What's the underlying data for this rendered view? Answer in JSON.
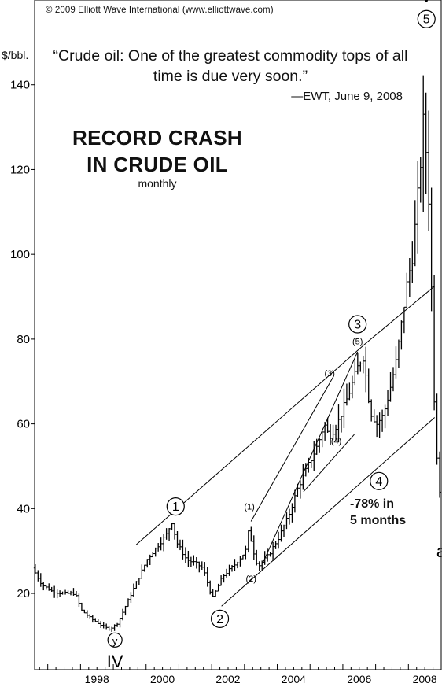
{
  "copyright": "© 2009 Elliott Wave International (www.elliottwave.com)",
  "quote": "“Crude oil: One of the greatest commodity tops of all time is due very soon.”",
  "quote_source": "—EWT, June 9, 2008",
  "title_line1": "RECORD CRASH",
  "title_line2": "IN CRUDE OIL",
  "subtitle": "monthly",
  "crash_line1": "-78% in",
  "crash_line2": "5 months",
  "chart_data": {
    "type": "bar",
    "bar_kind": "OHLC monthly price bars",
    "ylabel": "$/bbl.",
    "xlim": [
      1996.6,
      2009.0
    ],
    "ylim": [
      2,
      160
    ],
    "y_ticks": [
      20,
      40,
      60,
      80,
      100,
      120,
      140
    ],
    "x_ticks": [
      {
        "value": 1998.5,
        "label": "1998"
      },
      {
        "value": 2000.5,
        "label": "2000"
      },
      {
        "value": 2002.5,
        "label": "2002"
      },
      {
        "value": 2004.5,
        "label": "2004"
      },
      {
        "value": 2006.5,
        "label": "2006"
      },
      {
        "value": 2008.5,
        "label": "2008"
      }
    ],
    "anchors": [
      [
        1996.6,
        26
      ],
      [
        1996.9,
        22
      ],
      [
        1997.2,
        20.5
      ],
      [
        1997.5,
        20
      ],
      [
        1997.9,
        20
      ],
      [
        1998.1,
        16
      ],
      [
        1998.4,
        14
      ],
      [
        1998.7,
        12.5
      ],
      [
        1998.95,
        11.5
      ],
      [
        1999.2,
        13
      ],
      [
        1999.5,
        18
      ],
      [
        1999.8,
        23
      ],
      [
        2000.1,
        28
      ],
      [
        2000.4,
        31
      ],
      [
        2000.7,
        34
      ],
      [
        2000.85,
        37
      ],
      [
        2001.0,
        32
      ],
      [
        2001.3,
        28
      ],
      [
        2001.6,
        27
      ],
      [
        2001.8,
        26
      ],
      [
        2002.0,
        21
      ],
      [
        2002.1,
        19
      ],
      [
        2002.4,
        24
      ],
      [
        2002.8,
        27
      ],
      [
        2003.1,
        30
      ],
      [
        2003.2,
        35
      ],
      [
        2003.4,
        28
      ],
      [
        2003.5,
        26.5
      ],
      [
        2003.8,
        29
      ],
      [
        2004.1,
        33
      ],
      [
        2004.4,
        38
      ],
      [
        2004.7,
        45
      ],
      [
        2005.0,
        50
      ],
      [
        2005.3,
        55
      ],
      [
        2005.5,
        60
      ],
      [
        2005.65,
        57
      ],
      [
        2005.9,
        60
      ],
      [
        2006.2,
        66
      ],
      [
        2006.55,
        74
      ],
      [
        2006.7,
        76
      ],
      [
        2006.9,
        63
      ],
      [
        2007.1,
        60
      ],
      [
        2007.3,
        62
      ],
      [
        2007.5,
        68
      ],
      [
        2007.7,
        75
      ],
      [
        2007.9,
        86
      ],
      [
        2008.0,
        92
      ],
      [
        2008.2,
        100
      ],
      [
        2008.4,
        118
      ],
      [
        2008.5,
        128
      ],
      [
        2008.55,
        134
      ],
      [
        2008.6,
        125
      ],
      [
        2008.7,
        112
      ],
      [
        2008.75,
        100
      ],
      [
        2008.8,
        80
      ],
      [
        2008.85,
        67
      ],
      [
        2008.92,
        57
      ],
      [
        2008.97,
        45
      ]
    ],
    "annotations": {
      "wave_labels": [
        {
          "x": 2000.9,
          "y": 40.5,
          "label": "1",
          "circled": true
        },
        {
          "x": 2002.25,
          "y": 14.0,
          "label": "2",
          "circled": true
        },
        {
          "x": 2006.45,
          "y": 83.5,
          "label": "3",
          "circled": true
        },
        {
          "x": 2007.1,
          "y": 46.5,
          "label": "4",
          "circled": true
        },
        {
          "x": 2008.55,
          "y": 155.5,
          "label": "5",
          "circled": true
        },
        {
          "x": 1999.05,
          "y": 9.0,
          "label": "y",
          "circled": true
        },
        {
          "x": 1999.05,
          "y": 4.0,
          "label": "IV",
          "circled": false
        },
        {
          "x": 2008.55,
          "y": 161.0,
          "label": "V",
          "circled": false
        },
        {
          "x": 2009.0,
          "y": 30.0,
          "label": "a",
          "circled": false
        },
        {
          "x": 2003.15,
          "y": 40.5,
          "label": "(1)",
          "circled": false
        },
        {
          "x": 2003.2,
          "y": 23.5,
          "label": "(2)",
          "circled": false
        },
        {
          "x": 2005.6,
          "y": 72.0,
          "label": "(3)",
          "circled": false
        },
        {
          "x": 2005.8,
          "y": 56.0,
          "label": "(4)",
          "circled": false
        },
        {
          "x": 2006.45,
          "y": 79.5,
          "label": "(5)",
          "circled": false
        }
      ],
      "trend_lines": [
        {
          "from": [
            1999.7,
            31.5
          ],
          "to": [
            2006.7,
            79.0
          ]
        },
        {
          "from": [
            2006.7,
            79.0
          ],
          "to": [
            2008.8,
            92.5
          ]
        },
        {
          "from": [
            2002.3,
            17.0
          ],
          "to": [
            2008.8,
            61.5
          ]
        },
        {
          "from": [
            2003.2,
            37.0
          ],
          "to": [
            2005.7,
            71.0
          ]
        },
        {
          "from": [
            2003.55,
            27.0
          ],
          "to": [
            2006.45,
            77.0
          ]
        },
        {
          "from": [
            2004.8,
            44.0
          ],
          "to": [
            2006.35,
            57.5
          ]
        }
      ]
    }
  }
}
